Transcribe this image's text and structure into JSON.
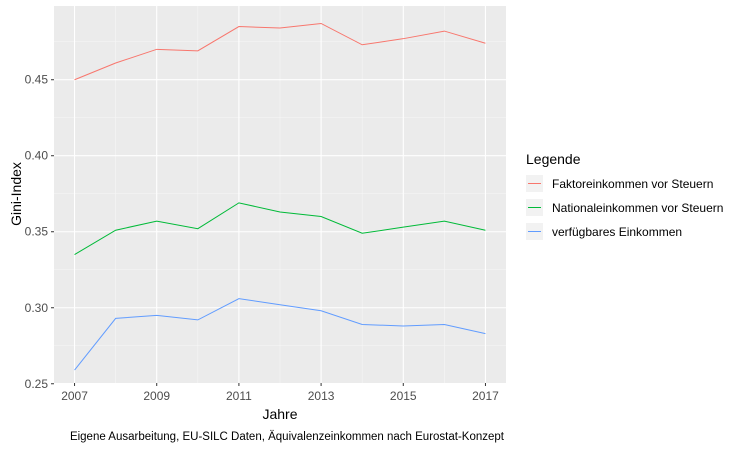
{
  "chart_data": {
    "type": "line",
    "xlabel": "Jahre",
    "ylabel": "Gini-Index",
    "caption": "Eigene Ausarbeitung, EU-SILC Daten, Äquivalenzeinkommen nach Eurostat-Konzept",
    "x": [
      2007,
      2008,
      2009,
      2010,
      2011,
      2012,
      2013,
      2014,
      2015,
      2016,
      2017
    ],
    "xlim": [
      2006.5,
      2017.5
    ],
    "ylim": [
      0.2505,
      0.4985
    ],
    "x_ticks": [
      "2007",
      "2009",
      "2011",
      "2013",
      "2015",
      "2017"
    ],
    "y_ticks": [
      "0.25",
      "0.30",
      "0.35",
      "0.40",
      "0.45"
    ],
    "grid": true,
    "legend": {
      "title": "Legende",
      "position": "right",
      "items": [
        "Faktoreinkommen vor Steuern",
        "Nationaleinkommen vor Steuern",
        "verfügbares Einkommen"
      ]
    },
    "series": [
      {
        "name": "Faktoreinkommen vor Steuern",
        "color": "#F8766D",
        "values": [
          0.45,
          0.461,
          0.47,
          0.469,
          0.485,
          0.484,
          0.487,
          0.473,
          0.477,
          0.482,
          0.474
        ]
      },
      {
        "name": "Nationaleinkommen vor Steuern",
        "color": "#00BA38",
        "values": [
          0.335,
          0.351,
          0.357,
          0.352,
          0.369,
          0.363,
          0.36,
          0.349,
          0.353,
          0.357,
          0.351
        ]
      },
      {
        "name": "verfügbares Einkommen",
        "color": "#619CFF",
        "values": [
          0.259,
          0.293,
          0.295,
          0.292,
          0.306,
          0.302,
          0.298,
          0.289,
          0.288,
          0.289,
          0.283
        ]
      }
    ]
  }
}
